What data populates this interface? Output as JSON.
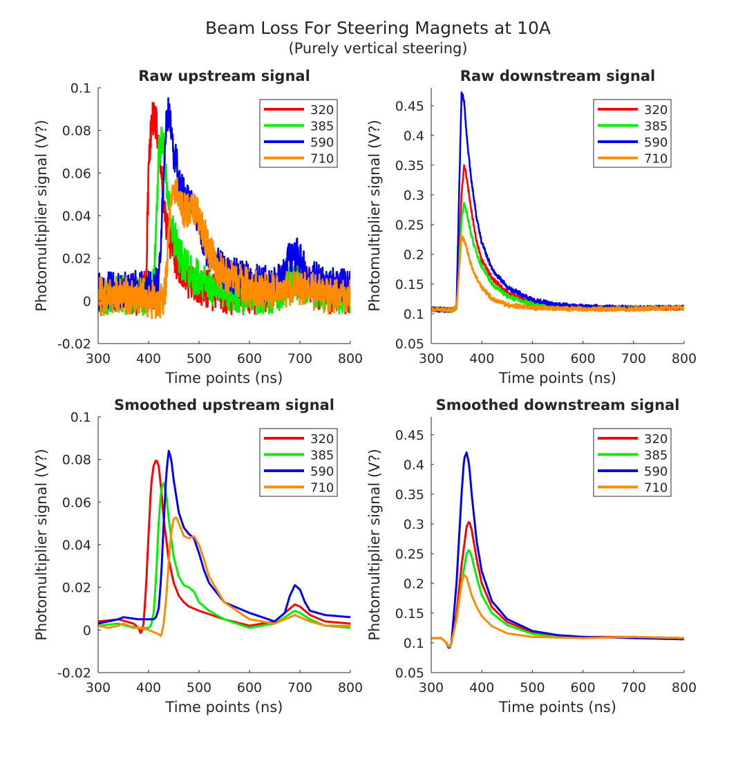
{
  "figure": {
    "title": "Beam Loss For Steering Magnets at 10A",
    "subtitle": "(Purely vertical steering)"
  },
  "colors": {
    "320": "#ff0000",
    "385": "#00ee00",
    "590": "#0000ee",
    "710": "#ff8c00",
    "axis": "#262626"
  },
  "chart_data": [
    {
      "type": "line",
      "title": "Raw upstream signal",
      "xlabel": "Time points (ns)",
      "ylabel": "Photomultiplier signal (V?)",
      "xlim": [
        300,
        800
      ],
      "ylim": [
        -0.02,
        0.1
      ],
      "xticks": [
        300,
        400,
        500,
        600,
        700,
        800
      ],
      "yticks": [
        -0.02,
        0,
        0.02,
        0.04,
        0.06,
        0.08,
        0.1
      ],
      "ytick_labels": [
        "-0.02",
        "0",
        "0.02",
        "0.04",
        "0.06",
        "0.08",
        "0.1"
      ],
      "legend_position": "top-right",
      "grid": false,
      "noise": 0.009,
      "series": [
        {
          "name": "320",
          "x": [
            300,
            340,
            380,
            395,
            400,
            405,
            410,
            415,
            420,
            425,
            430,
            440,
            450,
            460,
            470,
            480,
            490,
            500,
            520,
            550,
            600,
            650,
            680,
            700,
            720,
            750,
            800
          ],
          "y": [
            0.002,
            0.003,
            0.002,
            0.006,
            0.06,
            0.083,
            0.085,
            0.082,
            0.074,
            0.06,
            0.045,
            0.03,
            0.022,
            0.016,
            0.012,
            0.01,
            0.008,
            0.007,
            0.005,
            0.003,
            0.002,
            0.004,
            0.01,
            0.011,
            0.007,
            0.003,
            0.003
          ]
        },
        {
          "name": "385",
          "x": [
            300,
            340,
            380,
            400,
            410,
            415,
            420,
            425,
            430,
            435,
            440,
            450,
            460,
            470,
            480,
            490,
            500,
            520,
            550,
            600,
            650,
            680,
            700,
            720,
            750,
            800
          ],
          "y": [
            0.002,
            0.003,
            0.002,
            0.002,
            0.006,
            0.04,
            0.068,
            0.075,
            0.072,
            0.06,
            0.045,
            0.03,
            0.022,
            0.017,
            0.014,
            0.012,
            0.01,
            0.007,
            0.005,
            0.002,
            0.003,
            0.008,
            0.01,
            0.006,
            0.003,
            0.003
          ]
        },
        {
          "name": "590",
          "x": [
            300,
            340,
            350,
            380,
            410,
            420,
            425,
            430,
            435,
            440,
            445,
            450,
            460,
            470,
            480,
            490,
            500,
            510,
            520,
            550,
            600,
            650,
            670,
            680,
            690,
            700,
            710,
            720,
            750,
            800
          ],
          "y": [
            0.004,
            0.005,
            0.006,
            0.005,
            0.005,
            0.008,
            0.03,
            0.06,
            0.085,
            0.088,
            0.08,
            0.07,
            0.058,
            0.05,
            0.046,
            0.043,
            0.036,
            0.028,
            0.022,
            0.013,
            0.009,
            0.007,
            0.012,
            0.022,
            0.023,
            0.02,
            0.014,
            0.01,
            0.008,
            0.006
          ]
        },
        {
          "name": "710",
          "x": [
            300,
            340,
            380,
            420,
            430,
            435,
            440,
            445,
            450,
            455,
            460,
            470,
            480,
            490,
            500,
            510,
            520,
            530,
            550,
            600,
            650,
            680,
            700,
            720,
            750,
            800
          ],
          "y": [
            0.002,
            0.003,
            0.002,
            0.0,
            0.001,
            0.01,
            0.03,
            0.048,
            0.055,
            0.052,
            0.047,
            0.042,
            0.042,
            0.044,
            0.04,
            0.032,
            0.024,
            0.018,
            0.012,
            0.006,
            0.004,
            0.006,
            0.007,
            0.005,
            0.003,
            0.002
          ]
        }
      ]
    },
    {
      "type": "line",
      "title": "Raw downstream signal",
      "xlabel": "Time points (ns)",
      "ylabel": "Photomultiplier signal (V?)",
      "xlim": [
        300,
        800
      ],
      "ylim": [
        0.05,
        0.48
      ],
      "xticks": [
        300,
        400,
        500,
        600,
        700,
        800
      ],
      "yticks": [
        0.05,
        0.1,
        0.15,
        0.2,
        0.25,
        0.3,
        0.35,
        0.4,
        0.45
      ],
      "ytick_labels": [
        "0.05",
        "0.1",
        "0.15",
        "0.2",
        "0.25",
        "0.3",
        "0.35",
        "0.4",
        "0.45"
      ],
      "legend_position": "top-right",
      "grid": false,
      "noise": 0.004,
      "series": [
        {
          "name": "320",
          "x": [
            300,
            340,
            350,
            355,
            360,
            365,
            370,
            380,
            390,
            400,
            420,
            450,
            500,
            550,
            600,
            700,
            800
          ],
          "y": [
            0.108,
            0.106,
            0.11,
            0.2,
            0.3,
            0.35,
            0.33,
            0.27,
            0.22,
            0.19,
            0.16,
            0.135,
            0.118,
            0.112,
            0.11,
            0.11,
            0.11
          ]
        },
        {
          "name": "385",
          "x": [
            300,
            340,
            350,
            355,
            360,
            365,
            370,
            380,
            390,
            400,
            420,
            450,
            500,
            550,
            600,
            700,
            800
          ],
          "y": [
            0.108,
            0.106,
            0.11,
            0.18,
            0.26,
            0.285,
            0.27,
            0.23,
            0.2,
            0.18,
            0.15,
            0.13,
            0.116,
            0.111,
            0.11,
            0.11,
            0.11
          ]
        },
        {
          "name": "590",
          "x": [
            300,
            340,
            350,
            355,
            360,
            365,
            370,
            380,
            390,
            400,
            420,
            450,
            500,
            550,
            600,
            700,
            800
          ],
          "y": [
            0.108,
            0.106,
            0.11,
            0.3,
            0.47,
            0.46,
            0.4,
            0.32,
            0.26,
            0.22,
            0.175,
            0.145,
            0.123,
            0.115,
            0.112,
            0.11,
            0.11
          ]
        },
        {
          "name": "710",
          "x": [
            300,
            340,
            350,
            355,
            360,
            365,
            370,
            380,
            390,
            400,
            420,
            450,
            500,
            550,
            600,
            700,
            800
          ],
          "y": [
            0.108,
            0.106,
            0.11,
            0.17,
            0.23,
            0.225,
            0.21,
            0.18,
            0.16,
            0.145,
            0.125,
            0.115,
            0.11,
            0.109,
            0.108,
            0.108,
            0.11
          ]
        }
      ]
    },
    {
      "type": "line",
      "title": "Smoothed upstream signal",
      "xlabel": "Time points (ns)",
      "ylabel": "Photomultiplier signal (V?)",
      "xlim": [
        300,
        800
      ],
      "ylim": [
        -0.02,
        0.1
      ],
      "xticks": [
        300,
        400,
        500,
        600,
        700,
        800
      ],
      "yticks": [
        -0.02,
        0,
        0.02,
        0.04,
        0.06,
        0.08,
        0.1
      ],
      "ytick_labels": [
        "-0.02",
        "0",
        "0.02",
        "0.04",
        "0.06",
        "0.08",
        "0.1"
      ],
      "legend_position": "top-right",
      "grid": false,
      "noise": 0,
      "series": [
        {
          "name": "320",
          "x": [
            300,
            340,
            370,
            380,
            385,
            390,
            395,
            400,
            405,
            410,
            415,
            420,
            425,
            430,
            440,
            450,
            460,
            470,
            480,
            500,
            550,
            600,
            650,
            670,
            690,
            700,
            720,
            750,
            800
          ],
          "y": [
            0.004,
            0.005,
            0.003,
            0.001,
            -0.002,
            0.003,
            0.02,
            0.045,
            0.068,
            0.077,
            0.08,
            0.077,
            0.066,
            0.052,
            0.033,
            0.022,
            0.016,
            0.013,
            0.011,
            0.009,
            0.005,
            0.002,
            0.004,
            0.008,
            0.012,
            0.011,
            0.007,
            0.004,
            0.003
          ]
        },
        {
          "name": "385",
          "x": [
            300,
            340,
            370,
            400,
            405,
            410,
            415,
            420,
            425,
            430,
            435,
            440,
            450,
            460,
            470,
            480,
            490,
            500,
            520,
            550,
            600,
            650,
            670,
            690,
            700,
            720,
            750,
            800
          ],
          "y": [
            0.002,
            0.003,
            0.001,
            0.001,
            0.002,
            0.008,
            0.025,
            0.05,
            0.066,
            0.069,
            0.064,
            0.052,
            0.034,
            0.025,
            0.021,
            0.02,
            0.018,
            0.013,
            0.009,
            0.005,
            0.001,
            0.003,
            0.006,
            0.009,
            0.008,
            0.005,
            0.002,
            0.001
          ]
        },
        {
          "name": "590",
          "x": [
            300,
            340,
            350,
            380,
            410,
            415,
            420,
            425,
            430,
            435,
            440,
            445,
            450,
            460,
            470,
            480,
            490,
            500,
            510,
            520,
            550,
            600,
            650,
            670,
            680,
            690,
            700,
            710,
            720,
            750,
            800
          ],
          "y": [
            0.003,
            0.005,
            0.006,
            0.005,
            0.005,
            0.006,
            0.01,
            0.025,
            0.05,
            0.073,
            0.084,
            0.08,
            0.07,
            0.055,
            0.048,
            0.045,
            0.043,
            0.036,
            0.028,
            0.022,
            0.013,
            0.008,
            0.004,
            0.008,
            0.016,
            0.021,
            0.019,
            0.013,
            0.009,
            0.007,
            0.006
          ]
        },
        {
          "name": "710",
          "x": [
            300,
            320,
            340,
            350,
            360,
            380,
            400,
            420,
            425,
            430,
            435,
            440,
            445,
            450,
            455,
            460,
            470,
            480,
            490,
            500,
            510,
            520,
            550,
            600,
            650,
            690,
            700,
            720,
            750,
            800
          ],
          "y": [
            0.002,
            0.001,
            0.002,
            0.003,
            0.002,
            0.001,
            0.0,
            -0.002,
            -0.003,
            0.003,
            0.015,
            0.032,
            0.046,
            0.052,
            0.053,
            0.05,
            0.044,
            0.043,
            0.044,
            0.04,
            0.033,
            0.025,
            0.013,
            0.005,
            0.003,
            0.007,
            0.006,
            0.004,
            0.002,
            0.002
          ]
        }
      ]
    },
    {
      "type": "line",
      "title": "Smoothed downstream signal",
      "xlabel": "Time points (ns)",
      "ylabel": "Photomultiplier signal (V?)",
      "xlim": [
        300,
        800
      ],
      "ylim": [
        0.05,
        0.48
      ],
      "xticks": [
        300,
        400,
        500,
        600,
        700,
        800
      ],
      "yticks": [
        0.05,
        0.1,
        0.15,
        0.2,
        0.25,
        0.3,
        0.35,
        0.4,
        0.45
      ],
      "ytick_labels": [
        "0.05",
        "0.1",
        "0.15",
        "0.2",
        "0.25",
        "0.3",
        "0.35",
        "0.4",
        "0.45"
      ],
      "legend_position": "top-right",
      "grid": false,
      "noise": 0,
      "series": [
        {
          "name": "320",
          "x": [
            300,
            320,
            330,
            335,
            340,
            350,
            360,
            370,
            375,
            380,
            390,
            400,
            420,
            450,
            500,
            550,
            600,
            700,
            800
          ],
          "y": [
            0.108,
            0.108,
            0.1,
            0.092,
            0.1,
            0.15,
            0.23,
            0.295,
            0.305,
            0.29,
            0.24,
            0.2,
            0.16,
            0.135,
            0.118,
            0.112,
            0.11,
            0.11,
            0.108
          ]
        },
        {
          "name": "385",
          "x": [
            300,
            320,
            330,
            335,
            340,
            350,
            360,
            370,
            375,
            380,
            390,
            400,
            420,
            450,
            500,
            550,
            600,
            700,
            800
          ],
          "y": [
            0.108,
            0.108,
            0.1,
            0.092,
            0.1,
            0.14,
            0.2,
            0.25,
            0.257,
            0.245,
            0.21,
            0.18,
            0.15,
            0.13,
            0.115,
            0.11,
            0.108,
            0.11,
            0.108
          ]
        },
        {
          "name": "590",
          "x": [
            300,
            320,
            330,
            335,
            340,
            350,
            360,
            365,
            370,
            375,
            380,
            390,
            400,
            420,
            450,
            500,
            550,
            600,
            700,
            800
          ],
          "y": [
            0.108,
            0.108,
            0.1,
            0.09,
            0.1,
            0.2,
            0.35,
            0.41,
            0.42,
            0.4,
            0.35,
            0.27,
            0.22,
            0.17,
            0.14,
            0.12,
            0.113,
            0.11,
            0.108,
            0.106
          ]
        },
        {
          "name": "710",
          "x": [
            300,
            320,
            330,
            335,
            340,
            350,
            360,
            365,
            370,
            380,
            390,
            400,
            420,
            450,
            500,
            550,
            600,
            700,
            800
          ],
          "y": [
            0.108,
            0.108,
            0.1,
            0.092,
            0.1,
            0.14,
            0.2,
            0.215,
            0.21,
            0.18,
            0.16,
            0.145,
            0.128,
            0.116,
            0.11,
            0.109,
            0.108,
            0.11,
            0.108
          ]
        }
      ]
    }
  ]
}
